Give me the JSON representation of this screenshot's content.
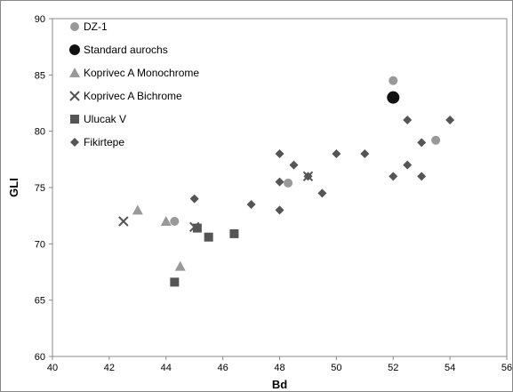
{
  "chart_data": {
    "type": "scatter",
    "xlabel": "Bd",
    "ylabel": "GLI",
    "xlim": [
      40,
      56
    ],
    "ylim": [
      60,
      90
    ],
    "x_ticks": [
      40,
      42,
      44,
      46,
      48,
      50,
      52,
      54,
      56
    ],
    "y_ticks": [
      60,
      65,
      70,
      75,
      80,
      85,
      90
    ],
    "grid": false,
    "legend_position": "top-left",
    "series": [
      {
        "name": "DZ-1",
        "marker": "circle",
        "color": "#999999",
        "points": [
          [
            44.3,
            72.0
          ],
          [
            48.3,
            75.4
          ],
          [
            52.0,
            84.5
          ],
          [
            53.5,
            79.2
          ]
        ]
      },
      {
        "name": "Standard aurochs",
        "marker": "circle-large",
        "color": "#111111",
        "points": [
          [
            52.0,
            83.0
          ]
        ]
      },
      {
        "name": "Koprivec A Monochrome",
        "marker": "triangle",
        "color": "#999999",
        "points": [
          [
            43.0,
            73.0
          ],
          [
            44.0,
            72.0
          ],
          [
            44.5,
            68.0
          ]
        ]
      },
      {
        "name": "Koprivec A Bichrome",
        "marker": "x",
        "color": "#555555",
        "points": [
          [
            42.5,
            72.0
          ],
          [
            45.0,
            71.5
          ],
          [
            49.0,
            76.0
          ]
        ]
      },
      {
        "name": "Ulucak V",
        "marker": "square",
        "color": "#555555",
        "points": [
          [
            44.3,
            66.6
          ],
          [
            45.1,
            71.4
          ],
          [
            45.5,
            70.6
          ],
          [
            46.4,
            70.9
          ]
        ]
      },
      {
        "name": "Fikirtepe",
        "marker": "diamond",
        "color": "#555555",
        "points": [
          [
            45.0,
            74.0
          ],
          [
            47.0,
            73.5
          ],
          [
            48.0,
            78.0
          ],
          [
            48.0,
            75.5
          ],
          [
            48.0,
            73.0
          ],
          [
            48.5,
            77.0
          ],
          [
            49.0,
            76.0
          ],
          [
            49.5,
            74.5
          ],
          [
            50.0,
            78.0
          ],
          [
            51.0,
            78.0
          ],
          [
            52.0,
            76.0
          ],
          [
            52.5,
            81.0
          ],
          [
            52.5,
            77.0
          ],
          [
            53.0,
            79.0
          ],
          [
            53.0,
            76.0
          ],
          [
            54.0,
            81.0
          ]
        ]
      }
    ]
  }
}
